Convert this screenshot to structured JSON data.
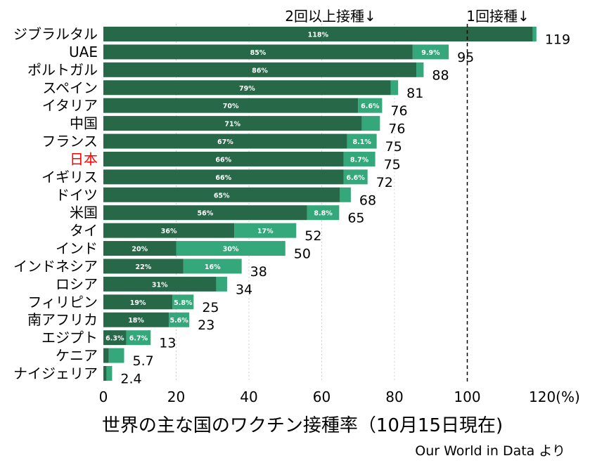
{
  "chart_data": {
    "type": "bar",
    "orientation": "horizontal",
    "stacked": true,
    "title": "世界の主な国のワクチン接種率（10月15日現在)",
    "source": "Our World in Data より",
    "xlim": [
      0,
      120
    ],
    "xticks": [
      "0",
      "20",
      "40",
      "60",
      "80",
      "100",
      "120(%)"
    ],
    "grid": true,
    "reference_line": {
      "x": 100
    },
    "annotations": {
      "two_doses": "2回以上接種↓",
      "one_dose": "1回接種↓"
    },
    "colors": {
      "two_doses": "#276849",
      "one_dose": "#34a87a",
      "highlight_label": "#ff0000",
      "label": "#000000"
    },
    "categories": [
      "ジブラルタル",
      "UAE",
      "ポルトガル",
      "スペイン",
      "イタリア",
      "中国",
      "フランス",
      "日本",
      "イギリス",
      "ドイツ",
      "米国",
      "タイ",
      "インド",
      "インドネシア",
      "ロシア",
      "フィリピン",
      "南アフリカ",
      "エジプト",
      "ケニア",
      "ナイジェリア"
    ],
    "highlight_category": "日本",
    "series": [
      {
        "key": "two_doses",
        "values": [
          118,
          85,
          86,
          79,
          70,
          71,
          67,
          66,
          66,
          65,
          56,
          36,
          20,
          22,
          31,
          19,
          18,
          6.3,
          1.5,
          0.9
        ],
        "labels": [
          "118%",
          "85%",
          "86%",
          "79%",
          "70%",
          "71%",
          "67%",
          "66%",
          "66%",
          "65%",
          "56%",
          "36%",
          "20%",
          "22%",
          "31%",
          "19%",
          "18%",
          "6.3%",
          "",
          ""
        ]
      },
      {
        "key": "one_dose",
        "values": [
          1,
          9.9,
          2,
          2,
          6.6,
          5,
          8.1,
          8.7,
          6.6,
          3,
          8.8,
          17,
          30,
          16,
          3,
          5.8,
          5.6,
          6.7,
          4.2,
          1.5
        ],
        "labels": [
          "",
          "9.9%",
          "",
          "",
          "6.6%",
          "",
          "8.1%",
          "8.7%",
          "6.6%",
          "",
          "8.8%",
          "17%",
          "30%",
          "16%",
          "",
          "5.8%",
          "5.6%",
          "6.7%",
          "",
          ""
        ]
      }
    ],
    "totals": [
      "119",
      "95",
      "88",
      "81",
      "76",
      "76",
      "75",
      "75",
      "72",
      "68",
      "65",
      "52",
      "50",
      "38",
      "34",
      "25",
      "23",
      "13",
      "5.7",
      "2.4"
    ]
  }
}
